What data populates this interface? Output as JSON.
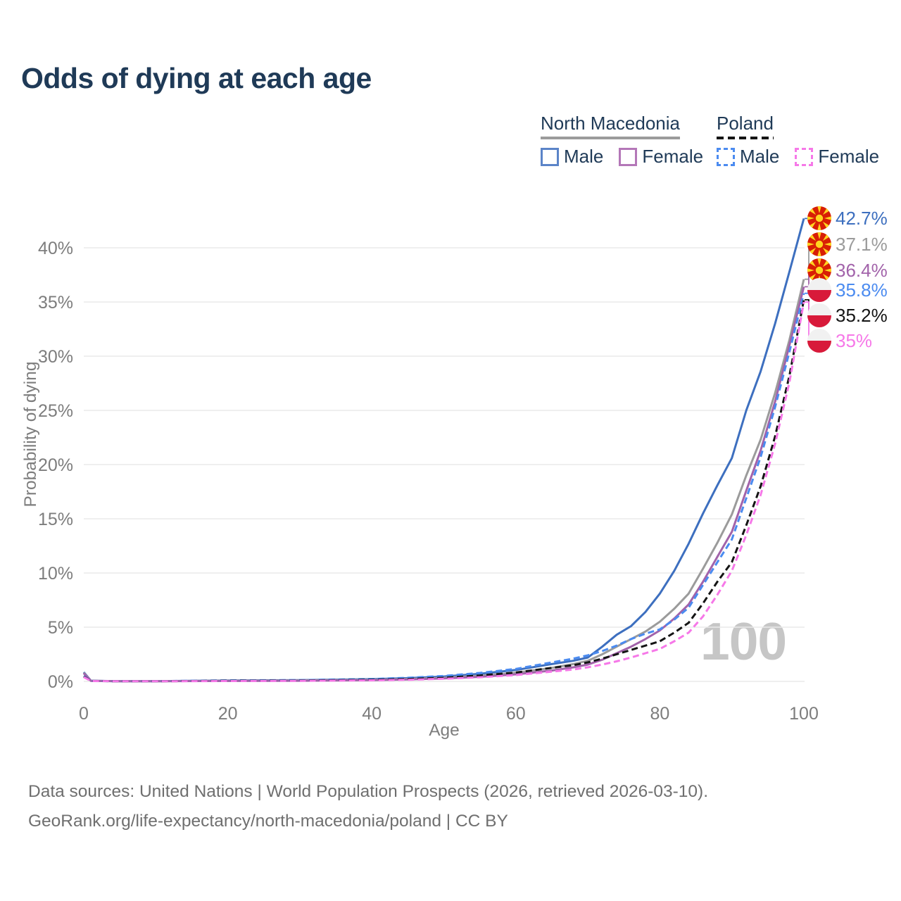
{
  "title": "Odds of dying at each age",
  "legend": {
    "groups": [
      {
        "name": "North Macedonia",
        "line_style": "solid",
        "underline_color": "#9b9b9b",
        "items": [
          {
            "label": "Male",
            "swatch_color": "#5b84c8",
            "dashed": false
          },
          {
            "label": "Female",
            "swatch_color": "#b477b8",
            "dashed": false
          }
        ]
      },
      {
        "name": "Poland",
        "line_style": "dashed",
        "underline_color": "#141414",
        "items": [
          {
            "label": "Male",
            "swatch_color": "#4b8bf0",
            "dashed": true
          },
          {
            "label": "Female",
            "swatch_color": "#f678e8",
            "dashed": true
          }
        ]
      }
    ]
  },
  "watermark": "100",
  "footer": {
    "line1": "Data sources: United Nations | World Population Prospects (2026, retrieved 2026-03-10).",
    "line2": "GeoRank.org/life-expectancy/north-macedonia/poland | CC BY"
  },
  "chart_data": {
    "type": "line",
    "title": "Odds of dying at each age",
    "xlabel": "Age",
    "ylabel": "Probability of dying",
    "x_ticks": [
      "0",
      "20",
      "40",
      "60",
      "80",
      "100"
    ],
    "y_ticks": [
      "0%",
      "5%",
      "10%",
      "15%",
      "20%",
      "25%",
      "30%",
      "35%",
      "40%"
    ],
    "xlim": [
      0,
      100
    ],
    "ylim_percent": [
      0,
      40
    ],
    "grid": "horizontal-only",
    "legend_position": "top-right",
    "x": [
      0,
      1,
      5,
      10,
      20,
      30,
      40,
      45,
      50,
      55,
      60,
      65,
      68,
      70,
      72,
      74,
      76,
      78,
      80,
      82,
      84,
      86,
      88,
      90,
      92,
      94,
      96,
      98,
      100
    ],
    "series": [
      {
        "name": "North Macedonia Male",
        "country": "North Macedonia",
        "sex": "Male",
        "color": "#3d6fbf",
        "dashed": false,
        "flag": "north-macedonia",
        "end_label": "42.7%",
        "values": [
          0.85,
          0.06,
          0.02,
          0.02,
          0.08,
          0.11,
          0.2,
          0.3,
          0.45,
          0.7,
          1.05,
          1.6,
          1.9,
          2.2,
          3.2,
          4.3,
          5.1,
          6.4,
          8.1,
          10.2,
          12.7,
          15.5,
          18.1,
          20.6,
          25.0,
          28.6,
          33.0,
          37.8,
          42.7
        ]
      },
      {
        "name": "North Macedonia",
        "country": "North Macedonia",
        "sex": "Both",
        "color": "#9b9b9b",
        "dashed": false,
        "flag": "north-macedonia",
        "end_label": "37.1%",
        "values": [
          0.8,
          0.05,
          0.02,
          0.02,
          0.06,
          0.09,
          0.15,
          0.22,
          0.33,
          0.52,
          0.8,
          1.25,
          1.6,
          1.9,
          2.5,
          3.2,
          3.9,
          4.6,
          5.5,
          6.7,
          8.1,
          10.4,
          12.8,
          15.4,
          19.0,
          22.3,
          26.6,
          31.5,
          37.1
        ]
      },
      {
        "name": "North Macedonia Female",
        "country": "North Macedonia",
        "sex": "Female",
        "color": "#a263aa",
        "dashed": false,
        "flag": "north-macedonia",
        "end_label": "36.4%",
        "values": [
          0.75,
          0.05,
          0.015,
          0.015,
          0.04,
          0.06,
          0.12,
          0.18,
          0.27,
          0.42,
          0.65,
          1.0,
          1.3,
          1.55,
          2.0,
          2.6,
          3.2,
          3.9,
          4.7,
          5.8,
          7.1,
          9.2,
          11.5,
          13.8,
          17.6,
          21.3,
          25.8,
          31.0,
          36.4
        ]
      },
      {
        "name": "Poland Male",
        "country": "Poland",
        "sex": "Male",
        "color": "#4b8bf0",
        "dashed": true,
        "flag": "poland",
        "end_label": "35.8%",
        "values": [
          0.5,
          0.04,
          0.015,
          0.02,
          0.09,
          0.12,
          0.22,
          0.33,
          0.5,
          0.78,
          1.15,
          1.75,
          2.1,
          2.4,
          2.8,
          3.3,
          3.9,
          4.4,
          4.8,
          5.7,
          6.8,
          8.9,
          11.0,
          13.1,
          16.9,
          20.7,
          25.3,
          30.4,
          35.8
        ]
      },
      {
        "name": "Poland",
        "country": "Poland",
        "sex": "Both",
        "color": "#141414",
        "dashed": true,
        "flag": "poland",
        "end_label": "35.2%",
        "values": [
          0.45,
          0.04,
          0.012,
          0.015,
          0.06,
          0.08,
          0.15,
          0.22,
          0.34,
          0.54,
          0.82,
          1.25,
          1.5,
          1.75,
          2.1,
          2.5,
          2.9,
          3.3,
          3.7,
          4.5,
          5.4,
          7.2,
          9.2,
          11.0,
          14.4,
          18.0,
          22.6,
          28.2,
          35.2
        ]
      },
      {
        "name": "Poland Female",
        "country": "Poland",
        "sex": "Female",
        "color": "#f678e8",
        "dashed": true,
        "flag": "poland",
        "end_label": "35%",
        "values": [
          0.4,
          0.035,
          0.01,
          0.012,
          0.03,
          0.05,
          0.1,
          0.15,
          0.24,
          0.38,
          0.58,
          0.9,
          1.1,
          1.3,
          1.55,
          1.85,
          2.2,
          2.6,
          3.0,
          3.7,
          4.5,
          6.0,
          8.0,
          10.2,
          13.5,
          17.2,
          21.9,
          27.6,
          35.0
        ]
      }
    ]
  }
}
